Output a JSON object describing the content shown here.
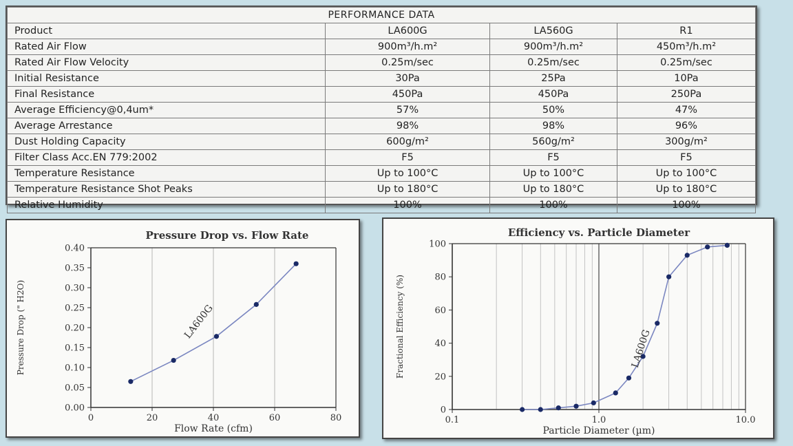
{
  "table": {
    "title": "PERFORMANCE DATA",
    "header": [
      "Product",
      "LA600G",
      "LA560G",
      "R1"
    ],
    "rows": [
      [
        "Rated Air Flow",
        "900m³/h.m²",
        "900m³/h.m²",
        "450m³/h.m²"
      ],
      [
        "Rated Air Flow Velocity",
        "0.25m/sec",
        "0.25m/sec",
        "0.25m/sec"
      ],
      [
        "Initial Resistance",
        "30Pa",
        "25Pa",
        "10Pa"
      ],
      [
        "Final Resistance",
        "450Pa",
        "450Pa",
        "250Pa"
      ],
      [
        "Average Efficiency@0,4um*",
        "57%",
        "50%",
        "47%"
      ],
      [
        "Average Arrestance",
        "98%",
        "98%",
        "96%"
      ],
      [
        "Dust Holding Capacity",
        "600g/m²",
        "560g/m²",
        "300g/m²"
      ],
      [
        "Filter Class Acc.EN 779:2002",
        "F5",
        "F5",
        "F5"
      ],
      [
        "Temperature Resistance",
        "Up to 100°C",
        "Up to 100°C",
        "Up to 100°C"
      ],
      [
        "Temperature Resistance Shot Peaks",
        "Up to 180°C",
        "Up to 180°C",
        "Up to 180°C"
      ],
      [
        "Relative Humidity",
        "100%",
        "100%",
        "100%"
      ]
    ]
  },
  "colors": {
    "line": "#7a86c0",
    "marker": "#1a2a66",
    "grid": "#b5b5b5"
  },
  "chart_data": [
    {
      "type": "line",
      "title": "Pressure Drop vs. Flow Rate",
      "xlabel": "Flow Rate (cfm)",
      "ylabel": "Pressure Drop (\" H2O)",
      "xlim": [
        0,
        80
      ],
      "ylim": [
        0,
        0.4
      ],
      "xticks": [
        0,
        20,
        40,
        60,
        80
      ],
      "xtick_labels": [
        "0",
        "20",
        "40",
        "60",
        "80"
      ],
      "yticks": [
        0,
        0.05,
        0.1,
        0.15,
        0.2,
        0.25,
        0.3,
        0.35,
        0.4
      ],
      "ytick_labels": [
        "0.00",
        "0.05",
        "0.10",
        "0.15",
        "0.20",
        "0.25",
        "0.30",
        "0.35",
        "0.40"
      ],
      "grid": "vertical",
      "annotation": "LA600G",
      "series": [
        {
          "name": "LA600G",
          "x": [
            13,
            27,
            41,
            54,
            67
          ],
          "y": [
            0.065,
            0.118,
            0.178,
            0.258,
            0.36
          ]
        }
      ]
    },
    {
      "type": "line",
      "title": "Efficiency vs. Particle Diameter",
      "xlabel": "Particle Diameter (µm)",
      "ylabel": "Fractional Efficiency (%)",
      "xscale": "log",
      "xlim": [
        0.1,
        10
      ],
      "ylim": [
        0,
        100
      ],
      "xticks": [
        0.1,
        1,
        10
      ],
      "xtick_labels": [
        "0.1",
        "1.0",
        "10.0"
      ],
      "yticks": [
        0,
        20,
        40,
        60,
        80,
        100
      ],
      "ytick_labels": [
        "0",
        "20",
        "40",
        "60",
        "80",
        "100"
      ],
      "grid": "vertical-log",
      "annotation": "LA600G",
      "series": [
        {
          "name": "LA600G",
          "x": [
            0.3,
            0.4,
            0.53,
            0.7,
            0.92,
            1.3,
            1.6,
            2.0,
            2.5,
            3.0,
            4.0,
            5.5,
            7.5
          ],
          "y": [
            0,
            0,
            1,
            2,
            4,
            10,
            19,
            32,
            52,
            80,
            93,
            98,
            99
          ]
        }
      ]
    }
  ]
}
